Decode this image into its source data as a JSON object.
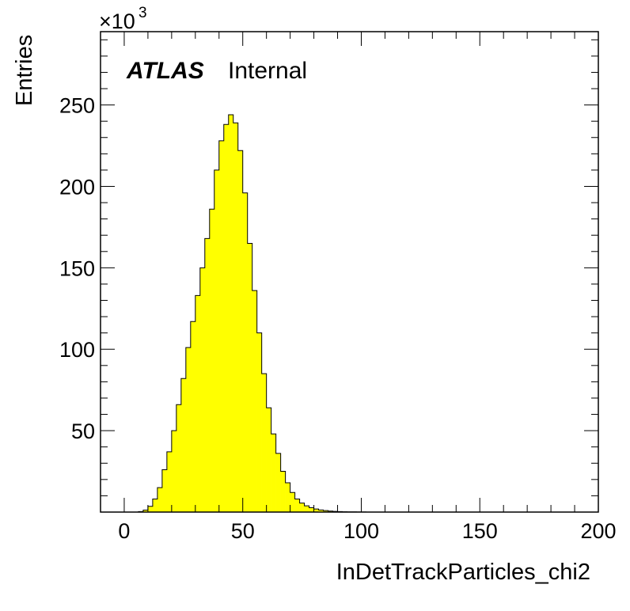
{
  "chart_data": {
    "type": "histogram",
    "xlabel": "InDetTrackParticles_chi2",
    "ylabel": "Entries",
    "y_multiplier": "×10",
    "y_multiplier_exponent": "3",
    "xlim": [
      -10,
      200
    ],
    "ylim": [
      0,
      295
    ],
    "x_ticks": [
      0,
      50,
      100,
      150,
      200
    ],
    "x_tick_labels": [
      "0",
      "50",
      "100",
      "150",
      "200"
    ],
    "y_ticks": [
      50,
      100,
      150,
      200,
      250
    ],
    "y_tick_labels": [
      "50",
      "100",
      "150",
      "200",
      "250"
    ],
    "bin_width": 2,
    "bin_start": 0,
    "fill_color": "#ffff00",
    "line_color": "#000000",
    "values": [
      0,
      0,
      0,
      0.3,
      1.2,
      3.5,
      8,
      15,
      26,
      37,
      50,
      66,
      82,
      101,
      117,
      133,
      150,
      168,
      186,
      210,
      228,
      238,
      244,
      239,
      222,
      196,
      165,
      136,
      110,
      85,
      64,
      48,
      36,
      25,
      18,
      12,
      8,
      5.5,
      3.8,
      2.7,
      1.9,
      1.3,
      0.9,
      0.6,
      0.4,
      0.3,
      0.2,
      0.15,
      0.1,
      0.07,
      0.05
    ]
  },
  "label": {
    "atlas": "ATLAS",
    "internal": "Internal"
  }
}
